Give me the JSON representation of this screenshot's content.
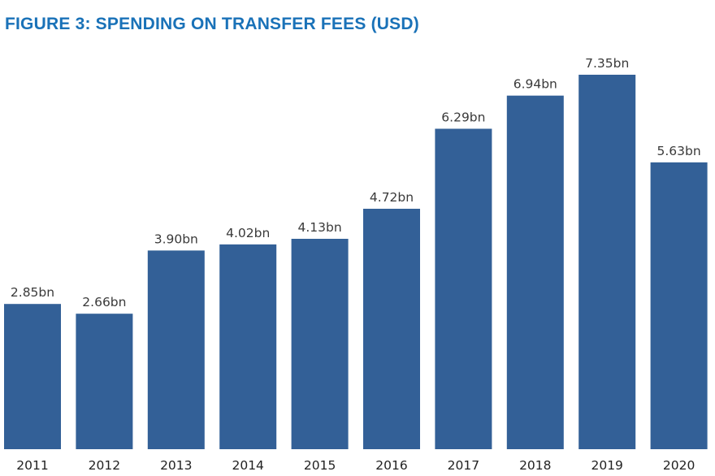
{
  "chart_data": {
    "type": "bar",
    "title": "FIGURE 3: SPENDING ON TRANSFER FEES (USD)",
    "categories": [
      "2011",
      "2012",
      "2013",
      "2014",
      "2015",
      "2016",
      "2017",
      "2018",
      "2019",
      "2020"
    ],
    "values": [
      2.85,
      2.66,
      3.9,
      4.02,
      4.13,
      4.72,
      6.29,
      6.94,
      7.35,
      5.63
    ],
    "data_labels": [
      "2.85bn",
      "2.66bn",
      "3.90bn",
      "4.02bn",
      "4.13bn",
      "4.72bn",
      "6.29bn",
      "6.94bn",
      "7.35bn",
      "5.63bn"
    ],
    "xlabel": "",
    "ylabel": "",
    "ylim": [
      0,
      7.35
    ],
    "grid": false,
    "bar_color": "#336097",
    "title_color": "#1a72b8"
  }
}
